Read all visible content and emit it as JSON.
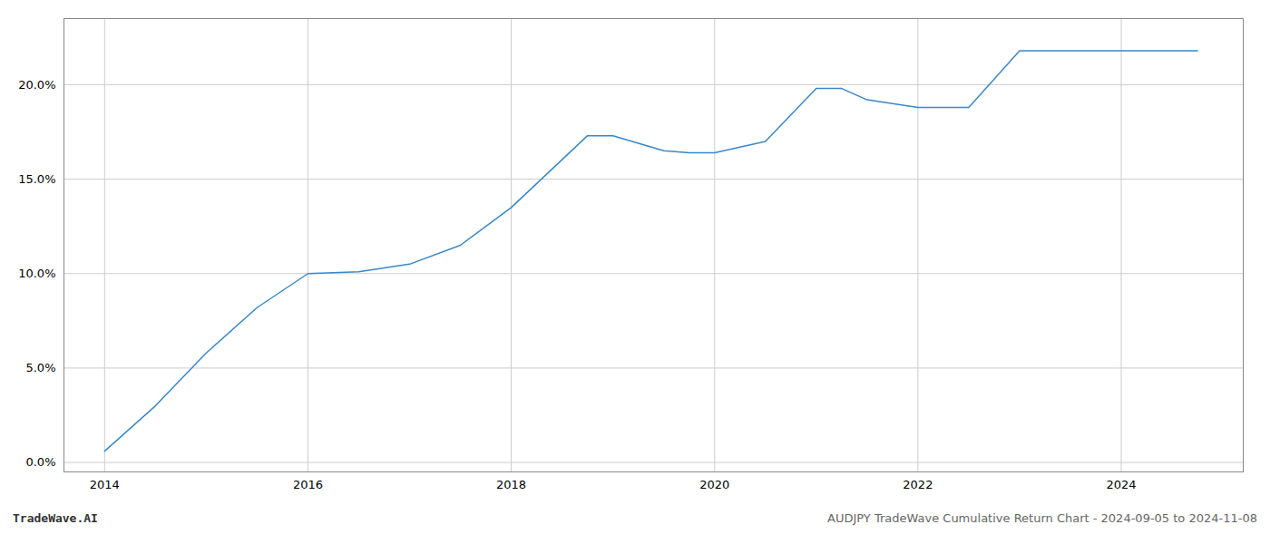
{
  "chart_data": {
    "type": "line",
    "title": "AUDJPY TradeWave Cumulative Return Chart - 2024-09-05 to 2024-11-08",
    "annotations": [
      "TradeWave.AI"
    ],
    "x": [
      2014.0,
      2014.5,
      2015.0,
      2015.5,
      2016.0,
      2016.5,
      2017.0,
      2017.5,
      2018.0,
      2018.75,
      2019.0,
      2019.5,
      2019.75,
      2020.0,
      2020.5,
      2021.0,
      2021.25,
      2021.5,
      2022.0,
      2022.5,
      2023.0,
      2023.5,
      2024.0,
      2024.75
    ],
    "values": [
      0.6,
      3.0,
      5.8,
      8.2,
      10.0,
      10.1,
      10.5,
      11.5,
      13.5,
      17.3,
      17.3,
      16.5,
      16.4,
      16.4,
      17.0,
      19.8,
      19.8,
      19.2,
      18.8,
      18.8,
      21.8,
      21.8,
      21.8,
      21.8
    ],
    "color": "#3a87c8",
    "xlim": [
      2013.6,
      2025.2
    ],
    "ylim": [
      -0.5,
      23.5
    ],
    "xticks": [
      2014,
      2016,
      2018,
      2020,
      2022,
      2024
    ],
    "yticks": [
      {
        "value": 0,
        "label": "0.0%"
      },
      {
        "value": 5,
        "label": "5.0%"
      },
      {
        "value": 10,
        "label": "10.0%"
      },
      {
        "value": 15,
        "label": "15.0%"
      },
      {
        "value": 20,
        "label": "20.0%"
      }
    ],
    "grid": true
  }
}
